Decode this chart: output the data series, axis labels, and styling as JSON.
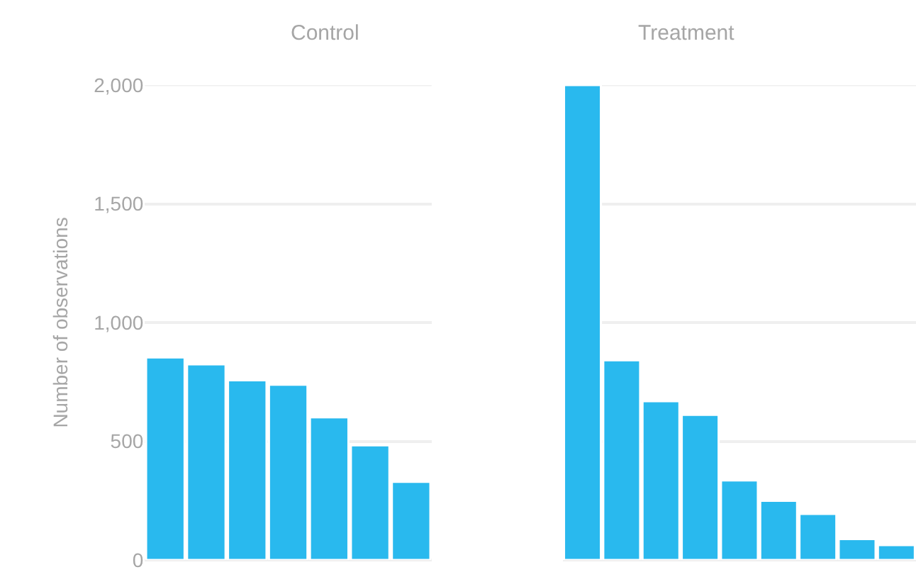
{
  "chart_data": [
    {
      "type": "bar",
      "title": "Control",
      "ylabel": "Number of observations",
      "categories": [
        null,
        null,
        null,
        null,
        null,
        null,
        null
      ],
      "values": [
        853,
        824,
        757,
        738,
        601,
        483,
        329
      ],
      "color": "#29b9ee",
      "ylim": [
        0,
        2000
      ],
      "yticks": [
        0,
        500,
        {
          "value": 1000,
          "label": "1,000"
        },
        {
          "value": 1500,
          "label": "1,500"
        },
        {
          "value": 2000,
          "label": "2,000"
        }
      ],
      "grid": "y",
      "tick_labels": "y"
    },
    {
      "type": "bar",
      "title": "Treatment",
      "categories": [
        null,
        null,
        null,
        null,
        null,
        null,
        null,
        null,
        null
      ],
      "values": [
        2000,
        841,
        669,
        611,
        335,
        249,
        194,
        88,
        63
      ],
      "color": "#29b9ee",
      "ylim": [
        0,
        2000
      ],
      "yticks": [
        0,
        500,
        1000,
        1500,
        2000
      ],
      "grid": "y",
      "tick_labels": false
    }
  ]
}
